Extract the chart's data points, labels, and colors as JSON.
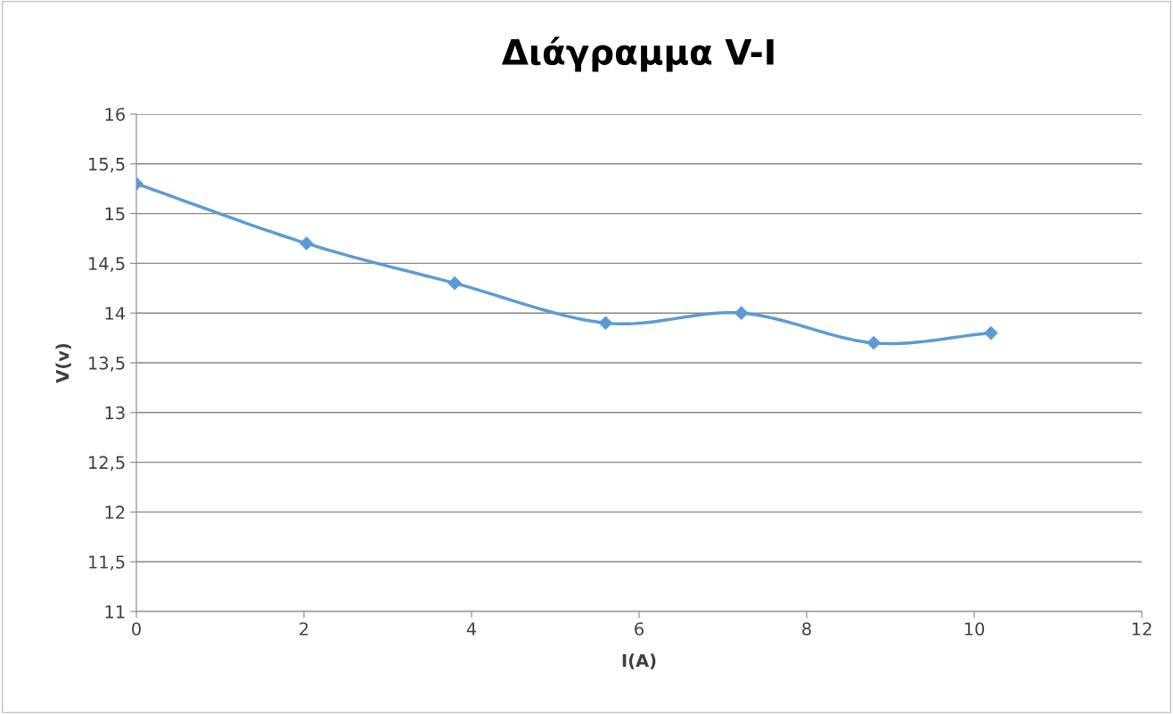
{
  "chart_data": {
    "type": "line",
    "title": "Διάγραμμα V-I",
    "xlabel": "I(A)",
    "ylabel": "V(v)",
    "x": [
      0,
      2.03,
      3.8,
      5.6,
      7.22,
      8.8,
      10.2
    ],
    "series": [
      {
        "color": "#5b9bd5",
        "values": [
          15.3,
          14.7,
          14.3,
          13.9,
          14.0,
          13.7,
          13.8
        ]
      }
    ],
    "xlim": [
      0,
      12
    ],
    "xticks": [
      0,
      2,
      4,
      6,
      8,
      10,
      12
    ],
    "ylim": [
      11,
      16
    ],
    "yticks": [
      {
        "value": 11,
        "label": "11"
      },
      {
        "value": 11.5,
        "label": "11,5"
      },
      {
        "value": 12,
        "label": "12"
      },
      {
        "value": 12.5,
        "label": "12,5"
      },
      {
        "value": 13,
        "label": "13"
      },
      {
        "value": 13.5,
        "label": "13,5"
      },
      {
        "value": 14,
        "label": "14"
      },
      {
        "value": 14.5,
        "label": "14,5"
      },
      {
        "value": 15,
        "label": "15"
      },
      {
        "value": 15.5,
        "label": "15,5"
      },
      {
        "value": 16,
        "label": "16"
      }
    ],
    "grid": "y",
    "marker": "diamond",
    "line_style": "solid"
  }
}
